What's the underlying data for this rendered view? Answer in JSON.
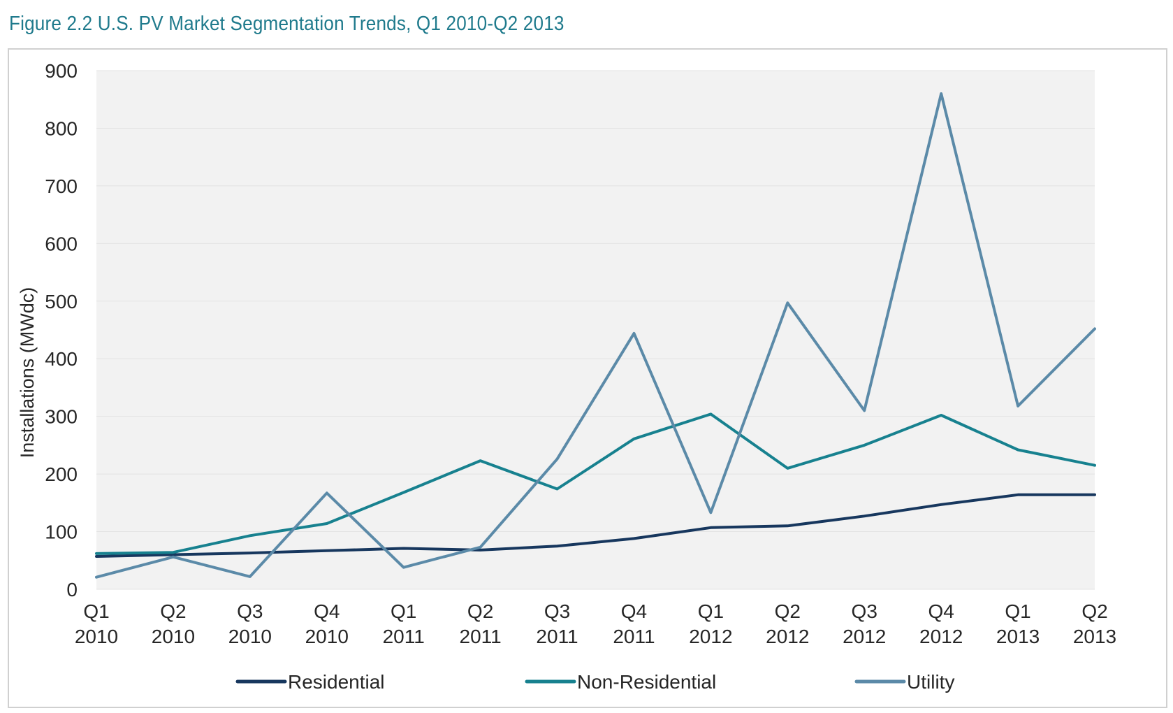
{
  "figure_title": "Figure 2.2  U.S. PV Market Segmentation Trends, Q1 2010-Q2 2013",
  "chart_data": {
    "type": "line",
    "title": "Figure 2.2  U.S. PV Market Segmentation Trends, Q1 2010-Q2 2013",
    "xlabel": "",
    "ylabel": "Installations (MWdc)",
    "ylim": [
      0,
      900
    ],
    "yticks": [
      0,
      100,
      200,
      300,
      400,
      500,
      600,
      700,
      800,
      900
    ],
    "grid": true,
    "legend_position": "bottom",
    "categories": [
      [
        "Q1",
        "2010"
      ],
      [
        "Q2",
        "2010"
      ],
      [
        "Q3",
        "2010"
      ],
      [
        "Q4",
        "2010"
      ],
      [
        "Q1",
        "2011"
      ],
      [
        "Q2",
        "2011"
      ],
      [
        "Q3",
        "2011"
      ],
      [
        "Q4",
        "2011"
      ],
      [
        "Q1",
        "2012"
      ],
      [
        "Q2",
        "2012"
      ],
      [
        "Q3",
        "2012"
      ],
      [
        "Q4",
        "2012"
      ],
      [
        "Q1",
        "2013"
      ],
      [
        "Q2",
        "2013"
      ]
    ],
    "series": [
      {
        "name": "Residential",
        "color": "#17375e",
        "values": [
          57,
          60,
          63,
          67,
          71,
          68,
          75,
          88,
          107,
          110,
          127,
          147,
          164,
          164
        ]
      },
      {
        "name": "Non-Residential",
        "color": "#17818f",
        "values": [
          62,
          64,
          93,
          114,
          168,
          223,
          174,
          261,
          304,
          210,
          250,
          302,
          242,
          215
        ]
      },
      {
        "name": "Utility",
        "color": "#5b8aa8",
        "values": [
          21,
          56,
          22,
          167,
          38,
          73,
          226,
          444,
          133,
          497,
          310,
          860,
          318,
          452
        ]
      }
    ]
  }
}
